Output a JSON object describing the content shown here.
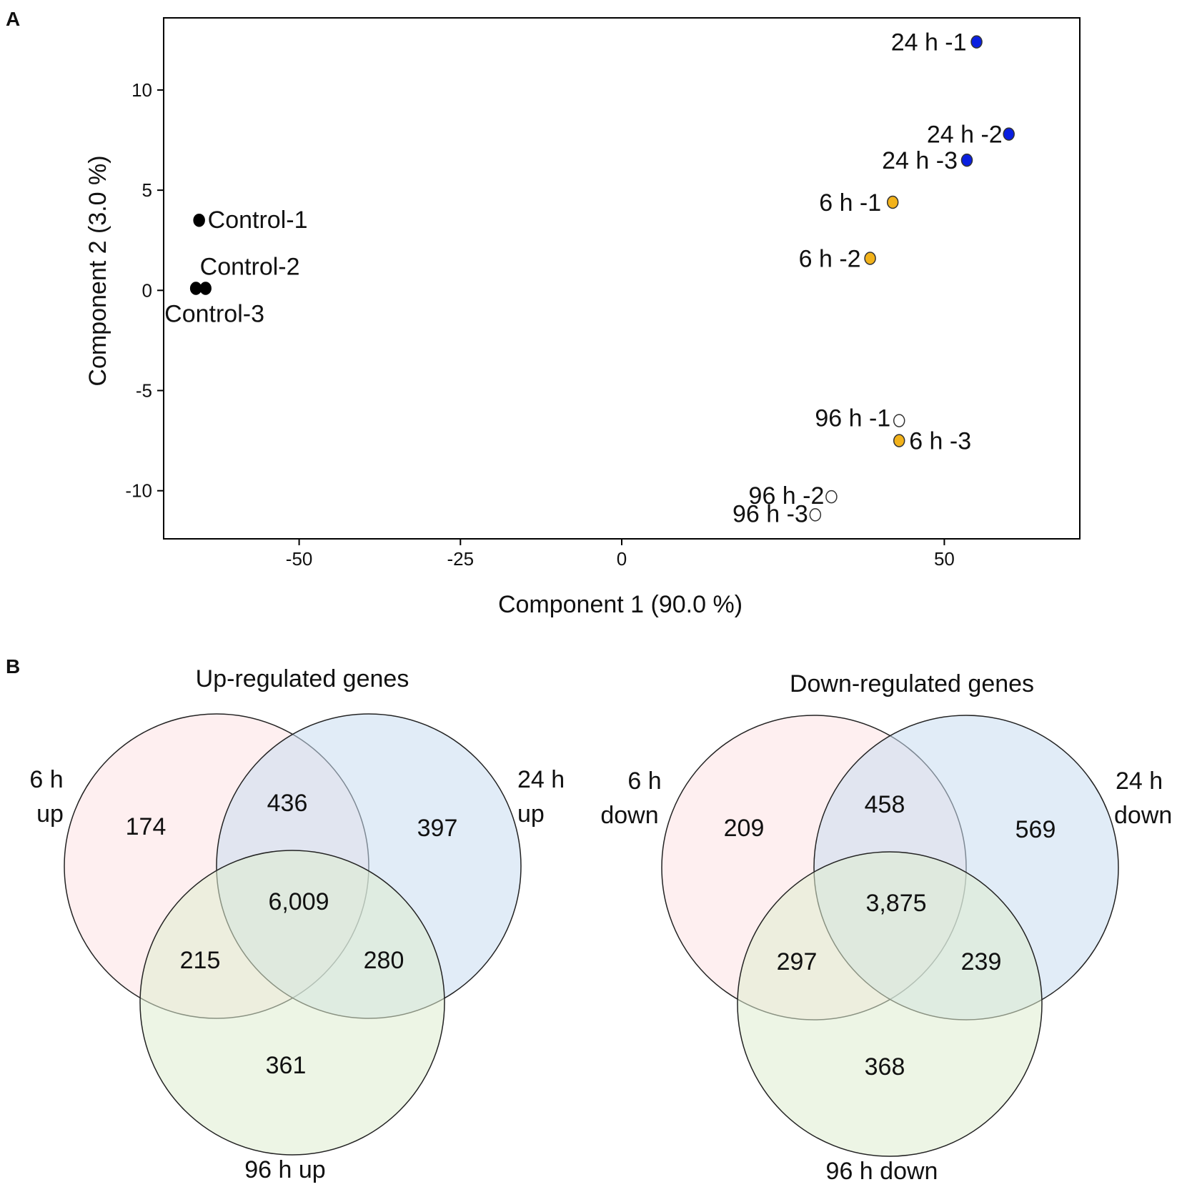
{
  "panel_a_letter": "A",
  "panel_b_letter": "B",
  "chart_data": [
    {
      "type": "scatter",
      "title": "",
      "xlabel": "Component 1 (90.0 %)",
      "ylabel": "Component 2 (3.0 %)",
      "xlim": [
        -71,
        71
      ],
      "ylim": [
        -12.4,
        13.6
      ],
      "xticks": [
        -50,
        -25,
        0,
        50
      ],
      "yticks": [
        10,
        5,
        0,
        -5,
        -10
      ],
      "points": [
        {
          "label": "Control-1",
          "x": -65.5,
          "y": 3.5,
          "group": "control",
          "color": "#000000"
        },
        {
          "label": "Control-2",
          "x": -64.5,
          "y": 0.1,
          "group": "control",
          "color": "#000000"
        },
        {
          "label": "Control-3",
          "x": -66.0,
          "y": 0.1,
          "group": "control",
          "color": "#000000"
        },
        {
          "label": "24 h -1",
          "x": 55.0,
          "y": 12.4,
          "group": "24h",
          "color": "#0a1fe0"
        },
        {
          "label": "24 h -2",
          "x": 60.0,
          "y": 7.8,
          "group": "24h",
          "color": "#0a1fe0"
        },
        {
          "label": "24 h -3",
          "x": 53.5,
          "y": 6.5,
          "group": "24h",
          "color": "#0a1fe0"
        },
        {
          "label": "6 h -1",
          "x": 42.0,
          "y": 4.4,
          "group": "6h",
          "color": "#f2b21a"
        },
        {
          "label": "6 h -2",
          "x": 38.5,
          "y": 1.6,
          "group": "6h",
          "color": "#f2b21a"
        },
        {
          "label": "6 h -3",
          "x": 43.0,
          "y": -7.5,
          "group": "6h",
          "color": "#f2b21a"
        },
        {
          "label": "96 h -1",
          "x": 43.0,
          "y": -6.5,
          "group": "96h",
          "color": "#ffffff"
        },
        {
          "label": "96 h -2",
          "x": 32.5,
          "y": -10.3,
          "group": "96h",
          "color": "#ffffff"
        },
        {
          "label": "96 h -3",
          "x": 30.0,
          "y": -11.2,
          "group": "96h",
          "color": "#ffffff"
        }
      ]
    },
    {
      "type": "venn",
      "title": "Up-regulated genes",
      "sets": [
        {
          "name": "6 h up",
          "line1": "6 h",
          "line2": "up",
          "color": "#fde1e3"
        },
        {
          "name": "24 h up",
          "line1": "24 h",
          "line2": "up",
          "color": "#dce8f6"
        },
        {
          "name": "96 h up",
          "line1": "96 h up",
          "line2": "",
          "color": "#e7f0dc"
        }
      ],
      "regions": {
        "only_6h": "174",
        "only_24h": "397",
        "only_96h": "361",
        "6h_24h": "436",
        "6h_96h": "215",
        "24h_96h": "280",
        "all": "6,009"
      }
    },
    {
      "type": "venn",
      "title": "Down-regulated genes",
      "sets": [
        {
          "name": "6 h down",
          "line1": "6 h",
          "line2": "down",
          "color": "#fde1e3"
        },
        {
          "name": "24 h down",
          "line1": "24 h",
          "line2": "down",
          "color": "#dce8f6"
        },
        {
          "name": "96 h down",
          "line1": "96 h down",
          "line2": "",
          "color": "#e7f0dc"
        }
      ],
      "regions": {
        "only_6h": "209",
        "only_24h": "569",
        "only_96h": "368",
        "6h_24h": "458",
        "6h_96h": "297",
        "24h_96h": "239",
        "all": "3,875"
      }
    }
  ]
}
